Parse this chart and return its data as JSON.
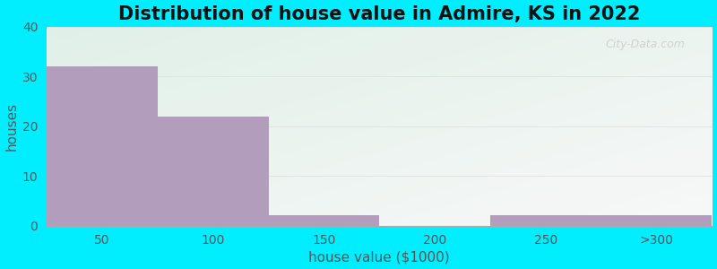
{
  "title": "Distribution of house value in Admire, KS in 2022",
  "xlabel": "house value ($1000)",
  "ylabel": "houses",
  "categories": [
    "50",
    "100",
    "150",
    "200",
    "250",
    ">300"
  ],
  "values": [
    32,
    22,
    2,
    0,
    2,
    2
  ],
  "bar_color": "#b39dbd",
  "grad_color_topleft": "#e0f0e8",
  "grad_color_bottomright": "#f8f8f8",
  "outer_bg": "#00eeff",
  "ylim": [
    0,
    40
  ],
  "yticks": [
    0,
    10,
    20,
    30,
    40
  ],
  "title_fontsize": 15,
  "axis_label_fontsize": 11,
  "tick_fontsize": 10,
  "bar_width": 1.0,
  "watermark": "City-Data.com",
  "watermark_color": "#cccccc",
  "grid_color": "#dddddd",
  "spine_color": "#aaaaaa",
  "tick_color": "#555555",
  "title_color": "#111111",
  "label_color": "#555555"
}
